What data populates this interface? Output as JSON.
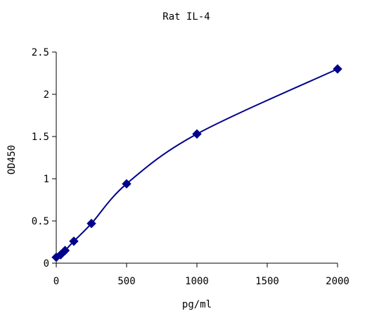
{
  "chart_data": {
    "type": "scatter",
    "title": "Rat IL-4",
    "xlabel": "pg/ml",
    "ylabel": "OD450",
    "xlim": [
      0,
      2000
    ],
    "ylim": [
      0,
      2.5
    ],
    "x_ticks": [
      0,
      500,
      1000,
      1500,
      2000
    ],
    "x_tick_labels": [
      "0",
      "500",
      "1000",
      "1500",
      "2000"
    ],
    "y_ticks": [
      0,
      0.5,
      1,
      1.5,
      2,
      2.5
    ],
    "y_tick_labels": [
      "0",
      "0.5",
      "1",
      "1.5",
      "2",
      "2.5"
    ],
    "grid": false,
    "series": [
      {
        "marker": "diamond",
        "color": "#00008B",
        "smooth_line": true,
        "x": [
          0,
          31.25,
          62.5,
          125,
          250,
          500,
          1000,
          2000
        ],
        "y": [
          0.07,
          0.1,
          0.15,
          0.26,
          0.47,
          0.94,
          1.53,
          2.3
        ]
      }
    ]
  }
}
